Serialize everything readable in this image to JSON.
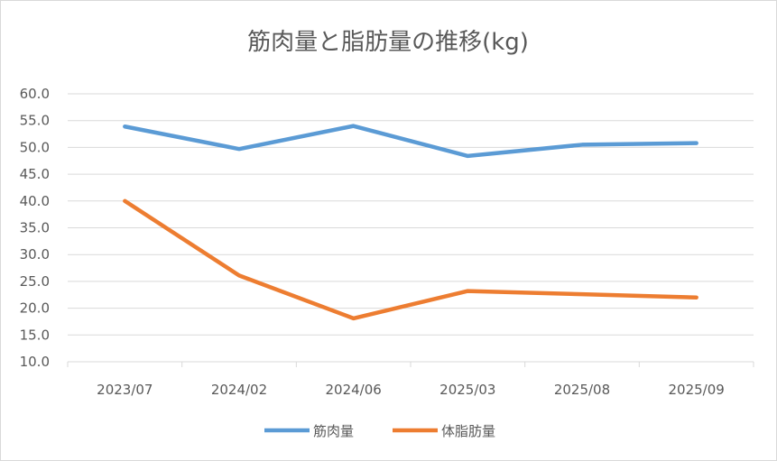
{
  "chart_data": {
    "type": "line",
    "title": "筋肉量と脂肪量の推移(kg)",
    "xlabel": "",
    "ylabel": "",
    "categories": [
      "2023/07",
      "2024/02",
      "2024/06",
      "2025/03",
      "2025/08",
      "2025/09"
    ],
    "ylim": [
      10.0,
      60.0
    ],
    "yticks": [
      "10.0",
      "15.0",
      "20.0",
      "25.0",
      "30.0",
      "35.0",
      "40.0",
      "45.0",
      "50.0",
      "55.0",
      "60.0"
    ],
    "grid": true,
    "legend_position": "bottom",
    "series": [
      {
        "name": "筋肉量",
        "color": "#5b9bd5",
        "values": [
          53.9,
          49.7,
          54.0,
          48.4,
          50.5,
          50.8
        ]
      },
      {
        "name": "体脂肪量",
        "color": "#ed7d31",
        "values": [
          40.0,
          26.1,
          18.1,
          23.2,
          22.6,
          22.0
        ]
      }
    ]
  }
}
